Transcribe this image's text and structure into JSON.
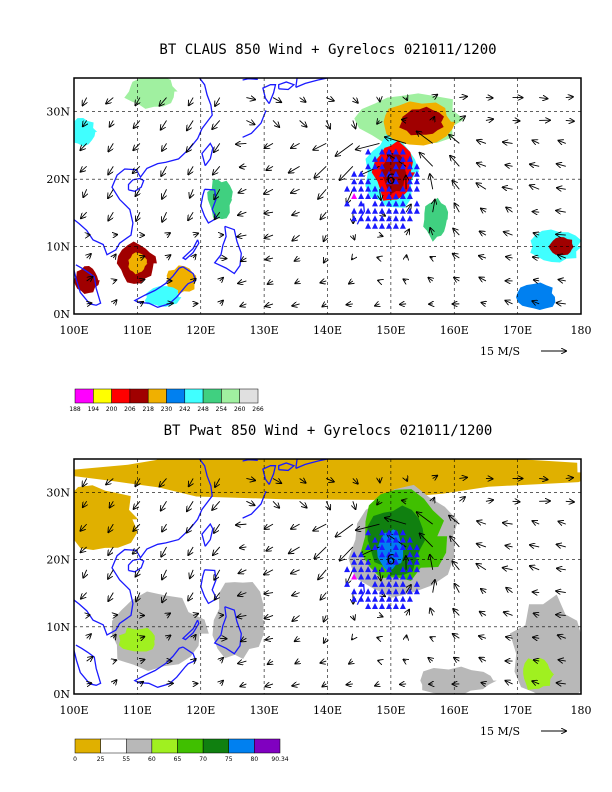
{
  "chart_data": [
    {
      "type": "heatmap",
      "title": "BT CLAUS 850 Wind + Gyrelocs 021011/1200",
      "x_ticks": [
        "100E",
        "110E",
        "120E",
        "130E",
        "140E",
        "150E",
        "160E",
        "170E",
        "180"
      ],
      "y_ticks": [
        "0N",
        "10N",
        "20N",
        "30N"
      ],
      "xlim": [
        100,
        180
      ],
      "ylim": [
        0,
        35
      ],
      "grid": true,
      "vector_scale_label": "15 M/S",
      "cyclone_label": "6",
      "cyclone_center": [
        150,
        20
      ],
      "colorbar": {
        "levels": [
          "188",
          "194",
          "200",
          "206",
          "218",
          "230",
          "242",
          "248",
          "254",
          "260",
          "266"
        ],
        "colors": [
          "#ff00ff",
          "#ffff00",
          "#ff0000",
          "#a00000",
          "#f0b000",
          "#0080f0",
          "#40ffff",
          "#40d080",
          "#a0f0a0",
          "#e0e0e0"
        ]
      },
      "cloud_blobs": [
        {
          "lon": 112,
          "lat": 33,
          "rx": 4,
          "ry": 2.5,
          "level": 8
        },
        {
          "lon": 101,
          "lat": 27,
          "rx": 2.5,
          "ry": 2,
          "level": 6
        },
        {
          "lon": 110,
          "lat": 7.5,
          "rx": 3,
          "ry": 3,
          "level": 3
        },
        {
          "lon": 110,
          "lat": 7.5,
          "rx": 1.5,
          "ry": 1.5,
          "level": 4
        },
        {
          "lon": 102,
          "lat": 5,
          "rx": 2,
          "ry": 2,
          "level": 3
        },
        {
          "lon": 117,
          "lat": 5,
          "rx": 2.5,
          "ry": 2,
          "level": 4
        },
        {
          "lon": 114,
          "lat": 2.5,
          "rx": 3,
          "ry": 1.5,
          "level": 6
        },
        {
          "lon": 123,
          "lat": 17,
          "rx": 2,
          "ry": 3,
          "level": 7
        },
        {
          "lon": 153,
          "lat": 29,
          "rx": 8,
          "ry": 4,
          "level": 8
        },
        {
          "lon": 154,
          "lat": 28.5,
          "rx": 6,
          "ry": 3.2,
          "level": 4
        },
        {
          "lon": 155,
          "lat": 28.5,
          "rx": 3.5,
          "ry": 2.2,
          "level": 3
        },
        {
          "lon": 150,
          "lat": 21,
          "rx": 4,
          "ry": 5.5,
          "level": 6
        },
        {
          "lon": 150.5,
          "lat": 21,
          "rx": 3.2,
          "ry": 4.5,
          "level": 2
        },
        {
          "lon": 150.5,
          "lat": 21,
          "rx": 2,
          "ry": 3,
          "level": 3
        },
        {
          "lon": 157,
          "lat": 14,
          "rx": 2,
          "ry": 3,
          "level": 7
        },
        {
          "lon": 176,
          "lat": 10,
          "rx": 4,
          "ry": 2.5,
          "level": 6
        },
        {
          "lon": 177,
          "lat": 10,
          "rx": 2,
          "ry": 1.5,
          "level": 3
        },
        {
          "lon": 173,
          "lat": 2.5,
          "rx": 3,
          "ry": 2,
          "level": 5
        }
      ]
    },
    {
      "type": "heatmap",
      "title": "BT Pwat 850 Wind + Gyrelocs 021011/1200",
      "x_ticks": [
        "100E",
        "110E",
        "120E",
        "130E",
        "140E",
        "150E",
        "160E",
        "170E",
        "180"
      ],
      "y_ticks": [
        "0N",
        "10N",
        "20N",
        "30N"
      ],
      "xlim": [
        100,
        180
      ],
      "ylim": [
        0,
        35
      ],
      "grid": true,
      "vector_scale_label": "15 M/S",
      "cyclone_label": "6",
      "cyclone_center": [
        150,
        20
      ],
      "colorbar": {
        "levels": [
          "0",
          "25",
          "55",
          "60",
          "65",
          "70",
          "75",
          "80",
          "90.34"
        ],
        "colors": [
          "#e0b000",
          "#ffffff",
          "#b8b8b8",
          "#a0f020",
          "#40c000",
          "#108010",
          "#0080f0",
          "#8000c0"
        ]
      },
      "pwat_blobs": [
        {
          "lon": 140,
          "lat": 33,
          "rx": 40,
          "ry": 4,
          "level": 0
        },
        {
          "lon": 104,
          "lat": 26,
          "rx": 6,
          "ry": 5,
          "level": 0
        },
        {
          "lon": 125,
          "lat": 34,
          "rx": 12,
          "ry": 3,
          "level": 0
        },
        {
          "lon": 113,
          "lat": 9,
          "rx": 8,
          "ry": 6,
          "level": 2
        },
        {
          "lon": 110,
          "lat": 8,
          "rx": 3,
          "ry": 2,
          "level": 3
        },
        {
          "lon": 126,
          "lat": 11,
          "rx": 4,
          "ry": 6,
          "level": 2
        },
        {
          "lon": 152,
          "lat": 23,
          "rx": 9,
          "ry": 8,
          "level": 2
        },
        {
          "lon": 152,
          "lat": 23.5,
          "rx": 6.5,
          "ry": 6.5,
          "level": 4
        },
        {
          "lon": 151,
          "lat": 23,
          "rx": 4.5,
          "ry": 5,
          "level": 5
        },
        {
          "lon": 150,
          "lat": 21.5,
          "rx": 2,
          "ry": 3,
          "level": 6
        },
        {
          "lon": 175,
          "lat": 6,
          "rx": 6,
          "ry": 8,
          "level": 2
        },
        {
          "lon": 173,
          "lat": 3,
          "rx": 2.5,
          "ry": 2.5,
          "level": 3
        },
        {
          "lon": 160,
          "lat": 2,
          "rx": 6,
          "ry": 2,
          "level": 2
        }
      ]
    }
  ]
}
